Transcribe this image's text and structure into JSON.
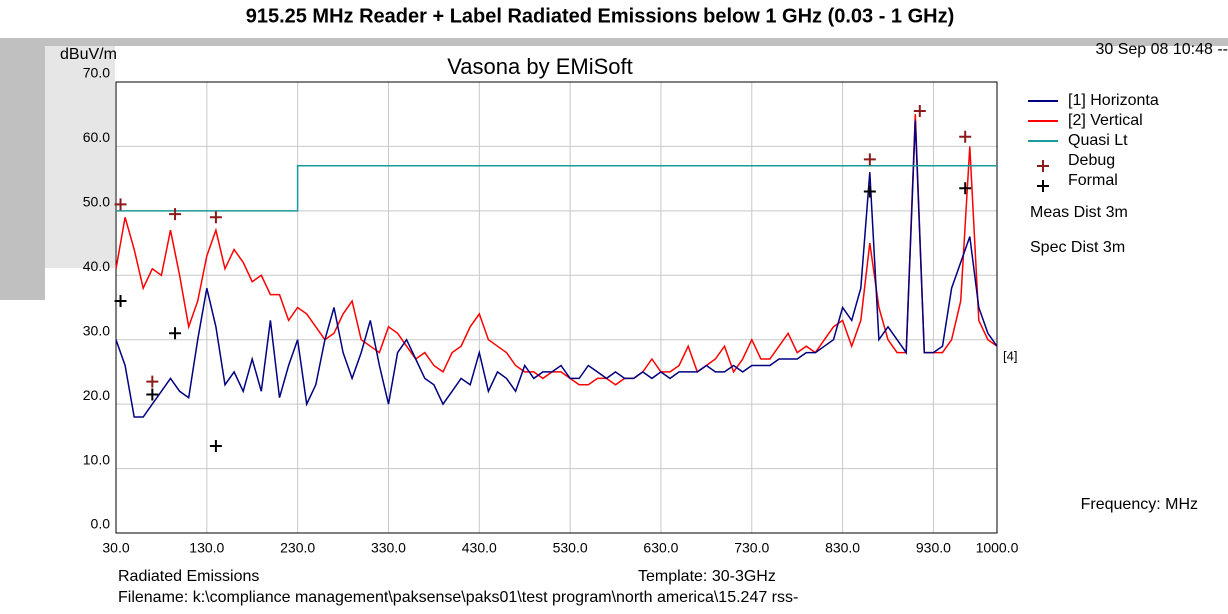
{
  "chart_data": {
    "type": "line",
    "title": "915.25 MHz Reader + Label Radiated Emissions below 1 GHz (0.03 - 1 GHz)",
    "subtitle": "Vasona by EMiSoft",
    "y_label": "dBuV/m",
    "x_label": "Frequency: MHz",
    "timestamp": "30 Sep 08 10:48 --",
    "annotations": [
      "Meas Dist 3m",
      "Spec Dist 3m",
      "[4]"
    ],
    "footer": [
      "Radiated Emissions",
      "Template: 30-3GHz",
      "Filename: k:\\compliance management\\paksense\\paks01\\test program\\north america\\15.247 rss-"
    ],
    "xlim": [
      30,
      1000
    ],
    "ylim": [
      0,
      70
    ],
    "xticks": [
      {
        "value": 30,
        "label": "30.0"
      },
      {
        "value": 130,
        "label": "130.0"
      },
      {
        "value": 230,
        "label": "230.0"
      },
      {
        "value": 330,
        "label": "330.0"
      },
      {
        "value": 430,
        "label": "430.0"
      },
      {
        "value": 530,
        "label": "530.0"
      },
      {
        "value": 630,
        "label": "630.0"
      },
      {
        "value": 730,
        "label": "730.0"
      },
      {
        "value": 830,
        "label": "830.0"
      },
      {
        "value": 930,
        "label": "930.0"
      },
      {
        "value": 1000,
        "label": "1000.0"
      }
    ],
    "yticks": [
      {
        "value": 0,
        "label": "0.0"
      },
      {
        "value": 10,
        "label": "10.0"
      },
      {
        "value": 20,
        "label": "20.0"
      },
      {
        "value": 30,
        "label": "30.0"
      },
      {
        "value": 40,
        "label": "40.0"
      },
      {
        "value": 50,
        "label": "50.0"
      },
      {
        "value": 60,
        "label": "60.0"
      },
      {
        "value": 70,
        "label": "70.0"
      }
    ],
    "grid": true,
    "legend": "right",
    "x": [
      30,
      40,
      50,
      60,
      70,
      80,
      90,
      100,
      110,
      120,
      130,
      140,
      150,
      160,
      170,
      180,
      190,
      200,
      210,
      220,
      230,
      240,
      250,
      260,
      270,
      280,
      290,
      300,
      310,
      320,
      330,
      340,
      350,
      360,
      370,
      380,
      390,
      400,
      410,
      420,
      430,
      440,
      450,
      460,
      470,
      480,
      490,
      500,
      510,
      520,
      530,
      540,
      550,
      560,
      570,
      580,
      590,
      600,
      610,
      620,
      630,
      640,
      650,
      660,
      670,
      680,
      690,
      700,
      710,
      720,
      730,
      740,
      750,
      760,
      770,
      780,
      790,
      800,
      810,
      820,
      830,
      840,
      850,
      860,
      870,
      880,
      890,
      900,
      910,
      920,
      930,
      940,
      950,
      960,
      970,
      980,
      990,
      1000
    ],
    "series": [
      {
        "name": "[1] Horizonta",
        "color": "#000080",
        "style": "line",
        "values": [
          30,
          26,
          18,
          18,
          20,
          22,
          24,
          22,
          21,
          30,
          38,
          32,
          23,
          25,
          22,
          27,
          22,
          33,
          21,
          26,
          30,
          20,
          23,
          30,
          35,
          28,
          24,
          28,
          33,
          26,
          20,
          28,
          30,
          27,
          24,
          23,
          20,
          22,
          24,
          23,
          28,
          22,
          25,
          24,
          22,
          26,
          24,
          25,
          25,
          26,
          24,
          24,
          26,
          25,
          24,
          25,
          24,
          24,
          25,
          24,
          25,
          24,
          25,
          25,
          25,
          26,
          25,
          25,
          26,
          25,
          26,
          26,
          26,
          27,
          27,
          27,
          28,
          28,
          29,
          30,
          35,
          33,
          38,
          56,
          30,
          32,
          30,
          28,
          64,
          28,
          28,
          29,
          38,
          42,
          46,
          35,
          31,
          29
        ]
      },
      {
        "name": "[2] Vertical",
        "color": "#ff0000",
        "style": "line",
        "values": [
          41,
          49,
          44,
          38,
          41,
          40,
          47,
          40,
          32,
          36,
          43,
          47,
          41,
          44,
          42,
          39,
          40,
          37,
          37,
          33,
          35,
          34,
          32,
          30,
          31,
          34,
          36,
          30,
          29,
          28,
          32,
          31,
          29,
          27,
          28,
          26,
          25,
          28,
          29,
          32,
          34,
          30,
          29,
          28,
          26,
          25,
          25,
          24,
          25,
          25,
          24,
          23,
          23,
          24,
          24,
          23,
          24,
          24,
          25,
          27,
          25,
          25,
          26,
          29,
          25,
          26,
          27,
          29,
          25,
          27,
          30,
          27,
          27,
          29,
          31,
          28,
          29,
          28,
          30,
          32,
          33,
          29,
          33,
          45,
          35,
          30,
          28,
          28,
          65,
          28,
          28,
          28,
          30,
          36,
          60,
          33,
          30,
          29
        ]
      },
      {
        "name": "Quasi Lt",
        "color": "#1a9a9a",
        "style": "line",
        "x": [
          30,
          230,
          230,
          1000
        ],
        "values": [
          50,
          50,
          57,
          57
        ]
      },
      {
        "name": "Debug",
        "color": "#8b1a1a",
        "style": "marker",
        "x": [
          35,
          70,
          95,
          140,
          860,
          915,
          965
        ],
        "values": [
          51,
          23.5,
          49.5,
          49,
          58,
          65.5,
          61.5
        ]
      },
      {
        "name": "Formal",
        "color": "#000000",
        "style": "marker",
        "x": [
          35,
          70,
          95,
          140,
          860,
          965
        ],
        "values": [
          36,
          21.5,
          31,
          13.5,
          53,
          53.5
        ]
      }
    ]
  }
}
